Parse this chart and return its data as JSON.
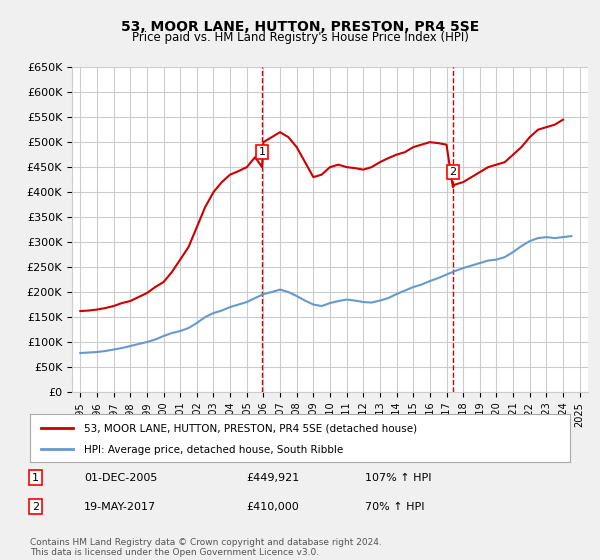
{
  "title": "53, MOOR LANE, HUTTON, PRESTON, PR4 5SE",
  "subtitle": "Price paid vs. HM Land Registry's House Price Index (HPI)",
  "red_label": "53, MOOR LANE, HUTTON, PRESTON, PR4 5SE (detached house)",
  "blue_label": "HPI: Average price, detached house, South Ribble",
  "point1_label": "1",
  "point2_label": "2",
  "point1_date": "01-DEC-2005",
  "point1_price": "£449,921",
  "point1_hpi": "107% ↑ HPI",
  "point2_date": "19-MAY-2017",
  "point2_price": "£410,000",
  "point2_hpi": "70% ↑ HPI",
  "footer": "Contains HM Land Registry data © Crown copyright and database right 2024.\nThis data is licensed under the Open Government Licence v3.0.",
  "xlabel_years": [
    "1995",
    "1996",
    "1997",
    "1998",
    "1999",
    "2000",
    "2001",
    "2002",
    "2003",
    "2004",
    "2005",
    "2006",
    "2007",
    "2008",
    "2009",
    "2010",
    "2011",
    "2012",
    "2013",
    "2014",
    "2015",
    "2016",
    "2017",
    "2018",
    "2019",
    "2020",
    "2021",
    "2022",
    "2023",
    "2024",
    "2025"
  ],
  "red_x": [
    1995.0,
    1995.5,
    1996.0,
    1996.5,
    1997.0,
    1997.5,
    1998.0,
    1998.5,
    1999.0,
    1999.5,
    2000.0,
    2000.5,
    2001.0,
    2001.5,
    2002.0,
    2002.5,
    2003.0,
    2003.5,
    2004.0,
    2004.5,
    2005.0,
    2005.5,
    2005.92,
    2006.0,
    2006.5,
    2007.0,
    2007.5,
    2008.0,
    2008.5,
    2009.0,
    2009.5,
    2010.0,
    2010.5,
    2011.0,
    2011.5,
    2012.0,
    2012.5,
    2013.0,
    2013.5,
    2014.0,
    2014.5,
    2015.0,
    2015.5,
    2016.0,
    2016.5,
    2017.0,
    2017.38,
    2017.5,
    2018.0,
    2018.5,
    2019.0,
    2019.5,
    2020.0,
    2020.5,
    2021.0,
    2021.5,
    2022.0,
    2022.5,
    2023.0,
    2023.5,
    2024.0
  ],
  "red_y": [
    162000,
    163000,
    165000,
    168000,
    172000,
    178000,
    182000,
    190000,
    198000,
    210000,
    220000,
    240000,
    265000,
    290000,
    330000,
    370000,
    400000,
    420000,
    435000,
    442000,
    449921,
    470000,
    449921,
    500000,
    510000,
    520000,
    510000,
    490000,
    460000,
    430000,
    435000,
    450000,
    455000,
    450000,
    448000,
    445000,
    450000,
    460000,
    468000,
    475000,
    480000,
    490000,
    495000,
    500000,
    498000,
    495000,
    410000,
    415000,
    420000,
    430000,
    440000,
    450000,
    455000,
    460000,
    475000,
    490000,
    510000,
    525000,
    530000,
    535000,
    545000
  ],
  "blue_x": [
    1995.0,
    1995.5,
    1996.0,
    1996.5,
    1997.0,
    1997.5,
    1998.0,
    1998.5,
    1999.0,
    1999.5,
    2000.0,
    2000.5,
    2001.0,
    2001.5,
    2002.0,
    2002.5,
    2003.0,
    2003.5,
    2004.0,
    2004.5,
    2005.0,
    2005.5,
    2006.0,
    2006.5,
    2007.0,
    2007.5,
    2008.0,
    2008.5,
    2009.0,
    2009.5,
    2010.0,
    2010.5,
    2011.0,
    2011.5,
    2012.0,
    2012.5,
    2013.0,
    2013.5,
    2014.0,
    2014.5,
    2015.0,
    2015.5,
    2016.0,
    2016.5,
    2017.0,
    2017.5,
    2018.0,
    2018.5,
    2019.0,
    2019.5,
    2020.0,
    2020.5,
    2021.0,
    2021.5,
    2022.0,
    2022.5,
    2023.0,
    2023.5,
    2024.0,
    2024.5
  ],
  "blue_y": [
    78000,
    79000,
    80000,
    82000,
    85000,
    88000,
    92000,
    96000,
    100000,
    105000,
    112000,
    118000,
    122000,
    128000,
    138000,
    150000,
    158000,
    163000,
    170000,
    175000,
    180000,
    188000,
    196000,
    200000,
    205000,
    200000,
    192000,
    183000,
    175000,
    172000,
    178000,
    182000,
    185000,
    183000,
    180000,
    179000,
    183000,
    188000,
    196000,
    203000,
    210000,
    215000,
    222000,
    228000,
    235000,
    242000,
    248000,
    253000,
    258000,
    263000,
    265000,
    270000,
    280000,
    292000,
    302000,
    308000,
    310000,
    308000,
    310000,
    312000
  ],
  "point1_x": 2005.92,
  "point1_y": 449921,
  "point2_x": 2017.38,
  "point2_y": 410000,
  "vline1_x": 2005.92,
  "vline2_x": 2017.38,
  "ylim": [
    0,
    650000
  ],
  "xlim": [
    1994.5,
    2025.5
  ],
  "red_color": "#cc0000",
  "blue_color": "#6699cc",
  "grid_color": "#cccccc",
  "bg_color": "#f0f0f0",
  "plot_bg": "#ffffff",
  "vline_color": "#cc0000"
}
